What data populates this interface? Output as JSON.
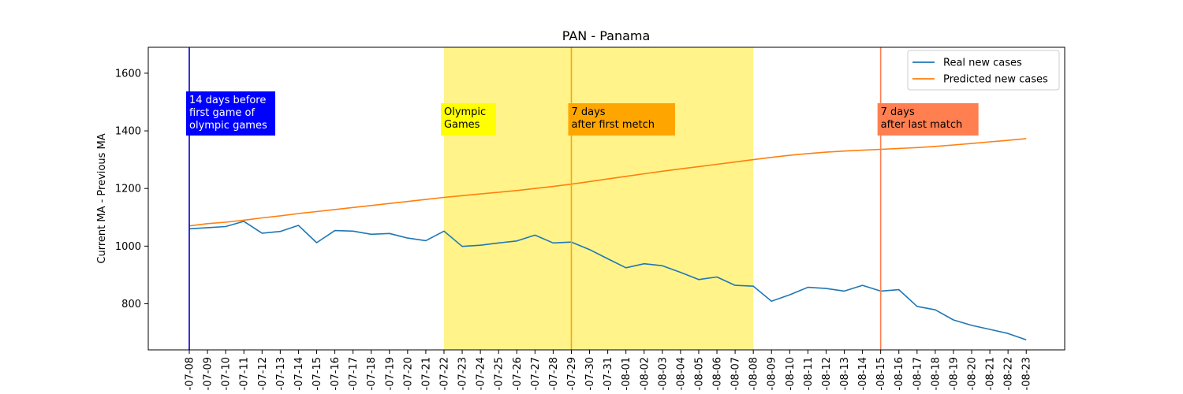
{
  "chart_data": {
    "type": "line",
    "title": "PAN - Panama",
    "xlabel": "",
    "ylabel": "Current MA - Previous MA",
    "ylim": [
      640,
      1690
    ],
    "yticks": [
      800,
      1000,
      1200,
      1400,
      1600
    ],
    "grid": false,
    "legend_position": "top-right",
    "x": [
      "2021-07-08",
      "2021-07-09",
      "2021-07-10",
      "2021-07-11",
      "2021-07-12",
      "2021-07-13",
      "2021-07-14",
      "2021-07-15",
      "2021-07-16",
      "2021-07-17",
      "2021-07-18",
      "2021-07-19",
      "2021-07-20",
      "2021-07-21",
      "2021-07-22",
      "2021-07-23",
      "2021-07-24",
      "2021-07-25",
      "2021-07-26",
      "2021-07-27",
      "2021-07-28",
      "2021-07-29",
      "2021-07-30",
      "2021-07-31",
      "2021-08-01",
      "2021-08-02",
      "2021-08-03",
      "2021-08-04",
      "2021-08-05",
      "2021-08-06",
      "2021-08-07",
      "2021-08-08",
      "2021-08-09",
      "2021-08-10",
      "2021-08-11",
      "2021-08-12",
      "2021-08-13",
      "2021-08-14",
      "2021-08-15",
      "2021-08-16",
      "2021-08-17",
      "2021-08-18",
      "2021-08-19",
      "2021-08-20",
      "2021-08-21",
      "2021-08-22",
      "2021-08-23"
    ],
    "xtick_labels": [
      "-07-08",
      "-07-09",
      "-07-10",
      "-07-11",
      "-07-12",
      "-07-13",
      "-07-14",
      "-07-15",
      "-07-16",
      "-07-17",
      "-07-18",
      "-07-19",
      "-07-20",
      "-07-21",
      "-07-22",
      "-07-23",
      "-07-24",
      "-07-25",
      "-07-26",
      "-07-27",
      "-07-28",
      "-07-29",
      "-07-30",
      "-07-31",
      "-08-01",
      "-08-02",
      "-08-03",
      "-08-04",
      "-08-05",
      "-08-06",
      "-08-07",
      "-08-08",
      "-08-09",
      "-08-10",
      "-08-11",
      "-08-12",
      "-08-13",
      "-08-14",
      "-08-15",
      "-08-16",
      "-08-17",
      "-08-18",
      "-08-19",
      "-08-20",
      "-08-21",
      "-08-22",
      "-08-23"
    ],
    "series": [
      {
        "name": "Real new cases",
        "color": "#1f77b4",
        "values": [
          1060,
          1064,
          1068,
          1086,
          1045,
          1051,
          1072,
          1012,
          1054,
          1052,
          1041,
          1044,
          1028,
          1019,
          1052,
          999,
          1003,
          1011,
          1018,
          1038,
          1011,
          1014,
          988,
          956,
          925,
          939,
          932,
          909,
          884,
          893,
          864,
          861,
          809,
          831,
          857,
          853,
          844,
          864,
          844,
          849,
          791,
          779,
          744,
          725,
          711,
          697,
          675
        ]
      },
      {
        "name": "Predicted new cases",
        "color": "#ff7f0e",
        "values": [
          1070,
          1078,
          1083,
          1090,
          1098,
          1105,
          1113,
          1120,
          1127,
          1134,
          1141,
          1148,
          1155,
          1162,
          1169,
          1175,
          1181,
          1187,
          1193,
          1200,
          1207,
          1215,
          1224,
          1233,
          1242,
          1251,
          1260,
          1268,
          1276,
          1284,
          1292,
          1300,
          1308,
          1315,
          1321,
          1326,
          1330,
          1333,
          1336,
          1339,
          1342,
          1346,
          1351,
          1356,
          1362,
          1367,
          1373
        ]
      }
    ],
    "shaded_region": {
      "from": "2021-07-22",
      "to": "2021-08-08",
      "color": "#fff176"
    },
    "vlines": [
      {
        "x": "2021-07-08",
        "color": "#0000cd",
        "label": "14 days before\nfirst game of\nolympic games",
        "box_color": "#0000ff",
        "text_color": "#ffffff"
      },
      {
        "x": "2021-07-29",
        "color": "#ffa500",
        "label": "7 days\nafter first metch",
        "box_color": "#ffa500",
        "text_color": "#000000"
      },
      {
        "x": "2021-08-15",
        "color": "#ff7f50",
        "label": "7 days\nafter last match",
        "box_color": "#ff7f50",
        "text_color": "#000000"
      }
    ],
    "annotations": [
      {
        "x": "2021-07-22",
        "label": "Olympic\nGames",
        "box_color": "#ffff00",
        "text_color": "#000000"
      }
    ]
  }
}
